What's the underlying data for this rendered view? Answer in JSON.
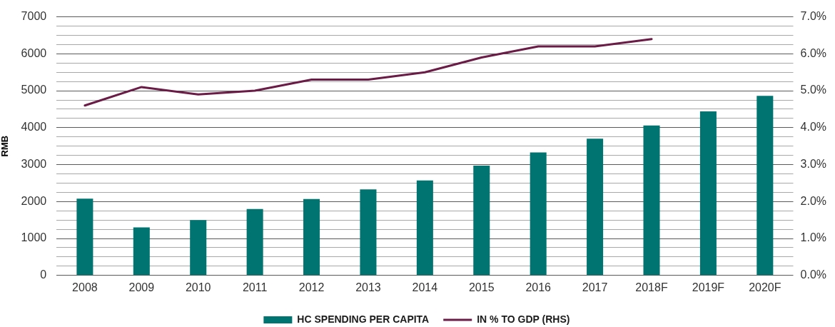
{
  "chart_data": {
    "type": "bar",
    "ylabel": "RMB",
    "categories": [
      "2008",
      "2009",
      "2010",
      "2011",
      "2012",
      "2013",
      "2014",
      "2015",
      "2016",
      "2017",
      "2018F",
      "2019F",
      "2020F"
    ],
    "series": [
      {
        "name": "HC SPENDING PER CAPITA",
        "color": "#007470",
        "values": [
          2080,
          1300,
          1500,
          1800,
          2070,
          2330,
          2570,
          2970,
          3330,
          3700,
          4060,
          4440,
          4860
        ]
      },
      {
        "name": "IN % TO GDP (RHS)",
        "type": "line",
        "axis": "y2",
        "color": "#6b1c46",
        "values": [
          4.6,
          5.1,
          4.9,
          5.0,
          5.3,
          5.3,
          5.5,
          5.9,
          6.2,
          6.2,
          6.4,
          null,
          null
        ]
      }
    ],
    "ylim": [
      0,
      7000
    ],
    "yticks": [
      0,
      {
        "value": 250,
        "label": null
      },
      {
        "value": 500,
        "label": null
      },
      {
        "value": 750,
        "label": null
      },
      1000,
      {
        "value": 1250,
        "label": null
      },
      {
        "value": 1500,
        "label": null
      },
      {
        "value": 1750,
        "label": null
      },
      2000,
      {
        "value": 2250,
        "label": null
      },
      {
        "value": 2500,
        "label": null
      },
      {
        "value": 2750,
        "label": null
      },
      3000,
      {
        "value": 3250,
        "label": null
      },
      {
        "value": 3500,
        "label": null
      },
      {
        "value": 3750,
        "label": null
      },
      4000,
      {
        "value": 4250,
        "label": null
      },
      {
        "value": 4500,
        "label": null
      },
      {
        "value": 4750,
        "label": null
      },
      5000,
      {
        "value": 5250,
        "label": null
      },
      {
        "value": 5500,
        "label": null
      },
      {
        "value": 5750,
        "label": null
      },
      6000,
      {
        "value": 6250,
        "label": null
      },
      {
        "value": 6500,
        "label": null
      },
      {
        "value": 6750,
        "label": null
      },
      7000
    ],
    "y2lim": [
      0,
      7
    ],
    "y2ticks": [
      {
        "value": 0,
        "label": "0.0%"
      },
      {
        "value": 1,
        "label": "1.0%"
      },
      {
        "value": 2,
        "label": "2.0%"
      },
      {
        "value": 3,
        "label": "3.0%"
      },
      {
        "value": 4,
        "label": "4.0%"
      },
      {
        "value": 5,
        "label": "5.0%"
      },
      {
        "value": 6,
        "label": "6.0%"
      },
      {
        "value": 7,
        "label": "7.0%"
      }
    ],
    "grid": "y",
    "legend": "bottom",
    "marker": "none"
  }
}
